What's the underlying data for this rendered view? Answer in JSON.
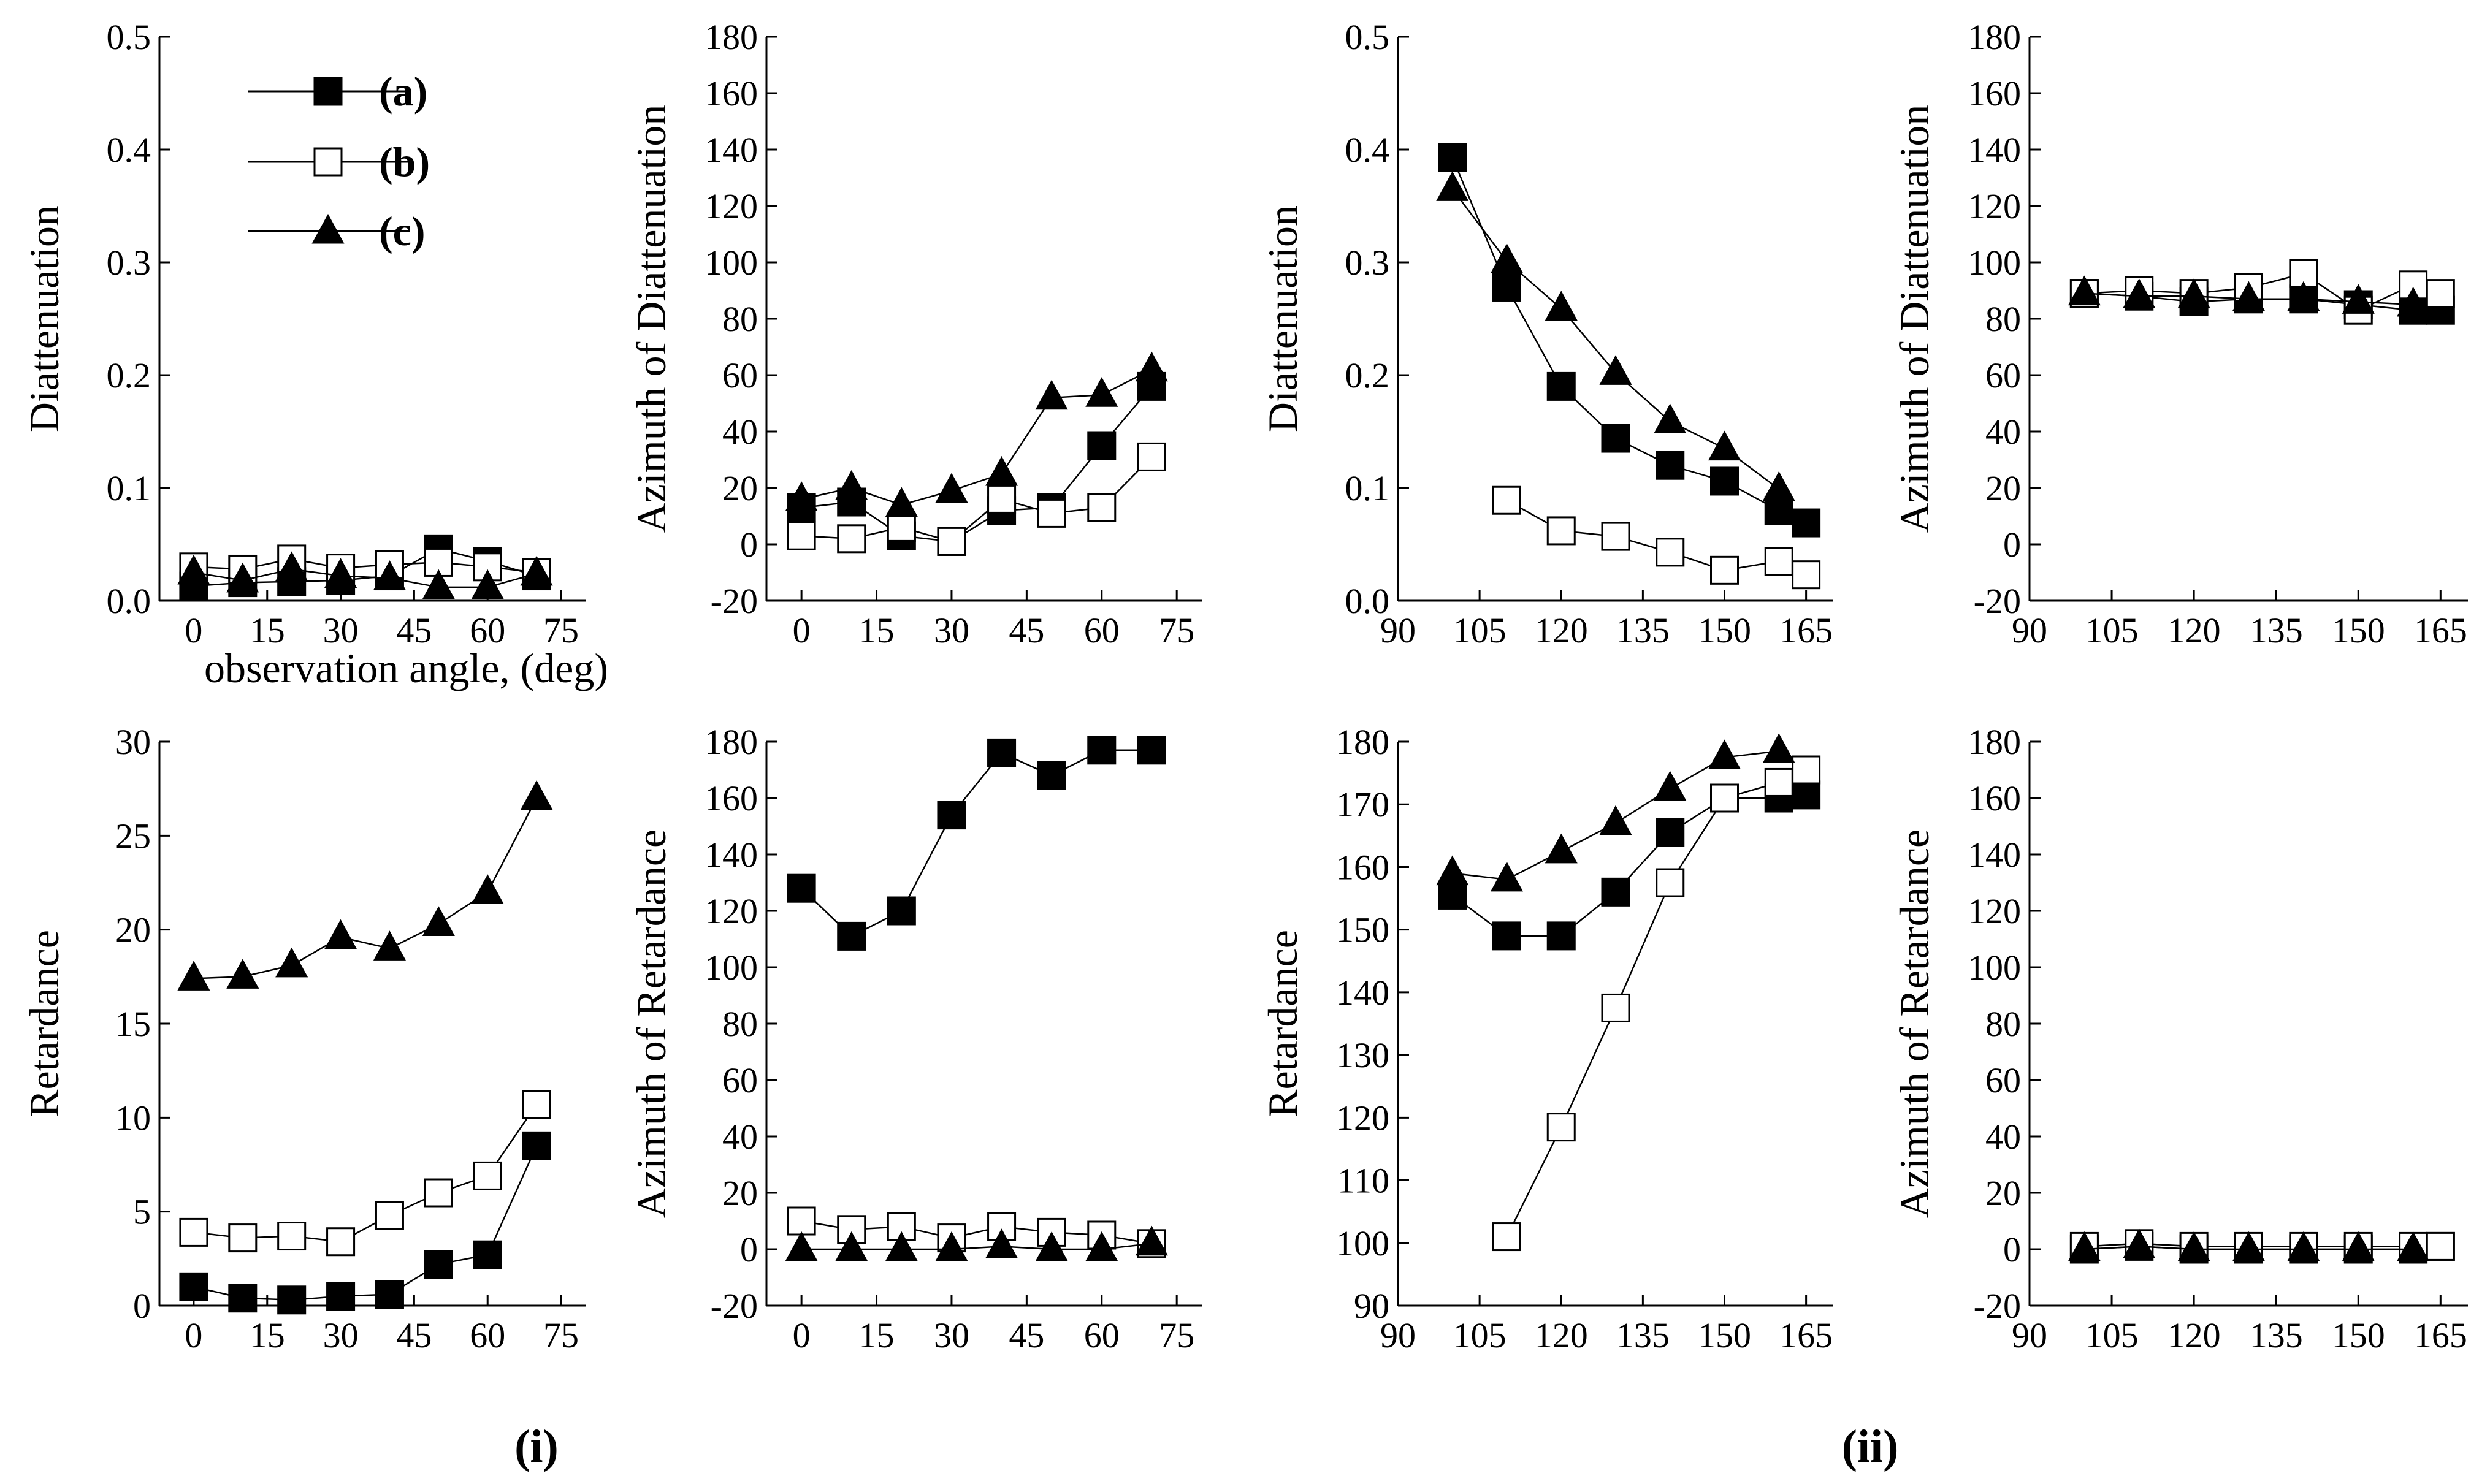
{
  "figure": {
    "legend": [
      {
        "series": "a",
        "text": "(a)"
      },
      {
        "series": "b",
        "text": "(b)"
      },
      {
        "series": "c",
        "text": "(c)"
      }
    ],
    "captions": [
      {
        "id": "i",
        "text": "(i)"
      },
      {
        "id": "ii",
        "text": "(ii)"
      }
    ]
  },
  "series_styles": {
    "a": {
      "marker": "square-filled",
      "color": "#000000"
    },
    "b": {
      "marker": "square-open",
      "color": "#000000"
    },
    "c": {
      "marker": "triangle-filled",
      "color": "#000000"
    }
  },
  "chart_data": [
    {
      "id": "i-diattenuation",
      "type": "line",
      "ylabel": "Diattenuation",
      "xlabel": "observation angle, (deg)",
      "xlim": [
        -7,
        80
      ],
      "ylim": [
        0,
        0.5
      ],
      "xticks": [
        0,
        15,
        30,
        45,
        60,
        75
      ],
      "yticks": [
        0.0,
        0.1,
        0.2,
        0.3,
        0.4,
        0.5
      ],
      "ytick_labels": [
        "0.0",
        "0.1",
        "0.2",
        "0.3",
        "0.4",
        "0.5"
      ],
      "series": [
        {
          "name": "a",
          "x": [
            0,
            10,
            20,
            30,
            40,
            50,
            60,
            70
          ],
          "values": [
            0.013,
            0.016,
            0.017,
            0.018,
            0.022,
            0.046,
            0.035,
            0.022
          ]
        },
        {
          "name": "b",
          "x": [
            0,
            10,
            20,
            30,
            40,
            50,
            60,
            70
          ],
          "values": [
            0.03,
            0.028,
            0.037,
            0.029,
            0.032,
            0.034,
            0.03,
            0.025
          ]
        },
        {
          "name": "c",
          "x": [
            0,
            10,
            20,
            30,
            40,
            50,
            60,
            70
          ],
          "values": [
            0.025,
            0.018,
            0.028,
            0.022,
            0.02,
            0.012,
            0.012,
            0.024
          ]
        }
      ]
    },
    {
      "id": "i-azimuth-diattenuation",
      "type": "line",
      "ylabel": "Azimuth of Diattenuation",
      "xlabel": "",
      "xlim": [
        -7,
        80
      ],
      "ylim": [
        -20,
        180
      ],
      "xticks": [
        0,
        15,
        30,
        45,
        60,
        75
      ],
      "yticks": [
        -20,
        0,
        20,
        40,
        60,
        80,
        100,
        120,
        140,
        160,
        180
      ],
      "series": [
        {
          "name": "a",
          "x": [
            0,
            10,
            20,
            30,
            40,
            50,
            60,
            70
          ],
          "values": [
            13,
            15,
            3,
            1,
            12,
            13,
            35,
            56
          ]
        },
        {
          "name": "b",
          "x": [
            0,
            10,
            20,
            30,
            40,
            50,
            60,
            70
          ],
          "values": [
            3,
            2,
            6,
            1,
            16,
            11,
            13,
            31
          ]
        },
        {
          "name": "c",
          "x": [
            0,
            10,
            20,
            30,
            40,
            50,
            60,
            70
          ],
          "values": [
            16,
            20,
            14,
            19,
            25,
            52,
            53,
            62
          ]
        }
      ]
    },
    {
      "id": "ii-diattenuation",
      "type": "line",
      "ylabel": "Diattenuation",
      "xlabel": "",
      "xlim": [
        90,
        170
      ],
      "ylim": [
        0,
        0.5
      ],
      "xticks": [
        90,
        105,
        120,
        135,
        150,
        165
      ],
      "yticks": [
        0.0,
        0.1,
        0.2,
        0.3,
        0.4,
        0.5
      ],
      "ytick_labels": [
        "0.0",
        "0.1",
        "0.2",
        "0.3",
        "0.4",
        "0.5"
      ],
      "series": [
        {
          "name": "a",
          "x": [
            100,
            110,
            120,
            130,
            140,
            150,
            160,
            165
          ],
          "values": [
            0.393,
            0.278,
            0.19,
            0.144,
            0.12,
            0.106,
            0.08,
            0.069
          ]
        },
        {
          "name": "b",
          "x": [
            110,
            120,
            130,
            140,
            150,
            160,
            165
          ],
          "values": [
            0.089,
            0.062,
            0.057,
            0.043,
            0.027,
            0.035,
            0.023
          ]
        },
        {
          "name": "c",
          "x": [
            100,
            110,
            120,
            130,
            140,
            150,
            160
          ],
          "values": [
            0.365,
            0.301,
            0.259,
            0.202,
            0.159,
            0.135,
            0.099
          ]
        }
      ]
    },
    {
      "id": "ii-azimuth-diattenuation",
      "type": "line",
      "ylabel": "Azimuth of Diattenuation",
      "xlabel": "",
      "xlim": [
        90,
        170
      ],
      "ylim": [
        -20,
        180
      ],
      "xticks": [
        90,
        105,
        120,
        135,
        150,
        165
      ],
      "yticks": [
        -20,
        0,
        20,
        40,
        60,
        80,
        100,
        120,
        140,
        160,
        180
      ],
      "series": [
        {
          "name": "a",
          "x": [
            100,
            110,
            120,
            130,
            140,
            150,
            160,
            165
          ],
          "values": [
            89,
            88,
            86,
            87,
            87,
            85,
            83,
            83
          ]
        },
        {
          "name": "b",
          "x": [
            100,
            110,
            120,
            130,
            140,
            150,
            160,
            165
          ],
          "values": [
            89,
            90,
            89,
            91,
            96,
            83,
            92,
            89
          ]
        },
        {
          "name": "c",
          "x": [
            100,
            110,
            120,
            130,
            140,
            150,
            160
          ],
          "values": [
            89,
            88,
            88,
            87,
            87,
            86,
            85
          ]
        }
      ]
    },
    {
      "id": "i-retardance",
      "type": "line",
      "ylabel": "Retardance",
      "xlabel": "",
      "xlim": [
        -7,
        80
      ],
      "ylim": [
        0,
        30
      ],
      "xticks": [
        0,
        15,
        30,
        45,
        60,
        75
      ],
      "yticks": [
        0,
        5,
        10,
        15,
        20,
        25,
        30
      ],
      "series": [
        {
          "name": "a",
          "x": [
            0,
            10,
            20,
            30,
            40,
            50,
            60,
            70
          ],
          "values": [
            1.0,
            0.4,
            0.3,
            0.5,
            0.6,
            2.2,
            2.7,
            8.5
          ]
        },
        {
          "name": "b",
          "x": [
            0,
            10,
            20,
            30,
            40,
            50,
            60,
            70
          ],
          "values": [
            3.9,
            3.6,
            3.7,
            3.4,
            4.8,
            6.0,
            6.9,
            10.7
          ]
        },
        {
          "name": "c",
          "x": [
            0,
            10,
            20,
            30,
            40,
            50,
            60,
            70
          ],
          "values": [
            17.4,
            17.5,
            18.1,
            19.6,
            19.0,
            20.3,
            22.0,
            27.0
          ]
        }
      ]
    },
    {
      "id": "i-azimuth-retardance",
      "type": "line",
      "ylabel": "Azimuth of Retardance",
      "xlabel": "",
      "xlim": [
        -7,
        80
      ],
      "ylim": [
        -20,
        180
      ],
      "xticks": [
        0,
        15,
        30,
        45,
        60,
        75
      ],
      "yticks": [
        -20,
        0,
        20,
        40,
        60,
        80,
        100,
        120,
        140,
        160,
        180
      ],
      "series": [
        {
          "name": "a",
          "x": [
            0,
            10,
            20,
            30,
            40,
            50,
            60,
            70
          ],
          "values": [
            128,
            111,
            120,
            154,
            176,
            168,
            177,
            177
          ]
        },
        {
          "name": "b",
          "x": [
            0,
            10,
            20,
            30,
            40,
            50,
            60,
            70
          ],
          "values": [
            10,
            7,
            8,
            4,
            8,
            6,
            5,
            2
          ]
        },
        {
          "name": "c",
          "x": [
            0,
            10,
            20,
            30,
            40,
            50,
            60,
            70
          ],
          "values": [
            0,
            0,
            0,
            0,
            1,
            0,
            0,
            2
          ]
        }
      ]
    },
    {
      "id": "ii-retardance",
      "type": "line",
      "ylabel": "Retardance",
      "xlabel": "",
      "xlim": [
        90,
        170
      ],
      "ylim": [
        90,
        180
      ],
      "xticks": [
        90,
        105,
        120,
        135,
        150,
        165
      ],
      "yticks": [
        90,
        100,
        110,
        120,
        130,
        140,
        150,
        160,
        170,
        180
      ],
      "series": [
        {
          "name": "a",
          "x": [
            100,
            110,
            120,
            130,
            140,
            150,
            160,
            165
          ],
          "values": [
            155.5,
            149,
            149,
            156,
            165.5,
            171,
            171,
            171.5
          ]
        },
        {
          "name": "b",
          "x": [
            110,
            120,
            130,
            140,
            150,
            160,
            165
          ],
          "values": [
            101,
            118.5,
            137.5,
            157.5,
            171,
            173.5,
            175.5
          ]
        },
        {
          "name": "c",
          "x": [
            100,
            110,
            120,
            130,
            140,
            150,
            160
          ],
          "values": [
            159,
            158,
            162.5,
            167,
            172.5,
            177.5,
            178.5
          ]
        }
      ]
    },
    {
      "id": "ii-azimuth-retardance",
      "type": "line",
      "ylabel": "Azimuth of Retardance",
      "xlabel": "",
      "xlim": [
        90,
        170
      ],
      "ylim": [
        -20,
        180
      ],
      "xticks": [
        90,
        105,
        120,
        135,
        150,
        165
      ],
      "yticks": [
        -20,
        0,
        20,
        40,
        60,
        80,
        100,
        120,
        140,
        160,
        180
      ],
      "series": [
        {
          "name": "a",
          "x": [
            100,
            110,
            120,
            130,
            140,
            150,
            160,
            165
          ],
          "values": [
            0,
            1,
            0,
            0,
            0,
            0,
            0,
            1
          ]
        },
        {
          "name": "b",
          "x": [
            100,
            110,
            120,
            130,
            140,
            150,
            160,
            165
          ],
          "values": [
            1,
            2,
            1,
            1,
            1,
            1,
            1,
            1
          ]
        },
        {
          "name": "c",
          "x": [
            100,
            110,
            120,
            130,
            140,
            150,
            160
          ],
          "values": [
            0,
            1,
            0,
            0,
            0,
            0,
            0
          ]
        }
      ]
    }
  ]
}
